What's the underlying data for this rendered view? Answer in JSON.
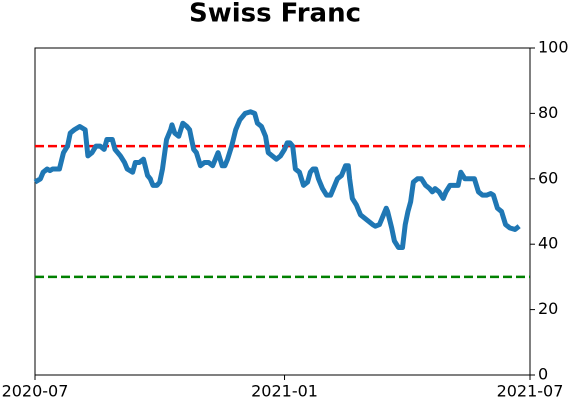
{
  "chart_data": {
    "type": "line",
    "title": "Swiss Franc",
    "x": [
      0,
      4,
      6,
      9,
      11,
      13,
      16,
      18,
      21,
      24,
      26,
      29,
      33,
      37,
      39,
      42,
      45,
      48,
      51,
      53,
      57,
      59,
      63,
      66,
      68,
      72,
      74,
      77,
      80,
      83,
      85,
      87,
      90,
      92,
      94,
      97,
      100,
      101,
      103,
      106,
      109,
      112,
      114,
      117,
      119,
      122,
      125,
      128,
      131,
      133,
      135,
      138,
      140,
      142,
      145,
      148,
      151,
      155,
      159,
      162,
      164,
      167,
      170,
      172,
      175,
      178,
      181,
      184,
      186,
      188,
      190,
      192,
      195,
      198,
      201,
      203,
      205,
      207,
      209,
      212,
      215,
      218,
      220,
      223,
      226,
      229,
      231,
      232,
      234,
      237,
      240,
      243,
      246,
      249,
      251,
      254,
      257,
      259,
      260,
      263,
      265,
      268,
      271,
      273,
      275,
      277,
      279,
      282,
      285,
      288,
      291,
      293,
      295,
      298,
      301,
      303,
      306,
      309,
      312,
      314,
      317,
      321,
      324,
      327,
      330,
      333,
      336,
      338,
      341,
      344,
      347,
      350,
      354,
      357
    ],
    "series": [
      {
        "name": "Swiss Franc",
        "color": "#1f77b4",
        "values": [
          59,
          60,
          62,
          63,
          62.5,
          63,
          63,
          63,
          68,
          70,
          74,
          75,
          76,
          75,
          67,
          68,
          70,
          70,
          69,
          72,
          72,
          69,
          67,
          65,
          63,
          62,
          65,
          65,
          66,
          61,
          60,
          58,
          58,
          59,
          63,
          72,
          75,
          76.5,
          74,
          73,
          77,
          76,
          75,
          69,
          68,
          64,
          65,
          65,
          64,
          66,
          68,
          64,
          64,
          66,
          70,
          75,
          78,
          80,
          80.5,
          80,
          77,
          76,
          73,
          68,
          67,
          66,
          67,
          69,
          71,
          71,
          70,
          63,
          62,
          58,
          59,
          62,
          63,
          63,
          60,
          57,
          55,
          55,
          57,
          60,
          61,
          64,
          64,
          60,
          54,
          52,
          49,
          48,
          47,
          46,
          45.5,
          46,
          49,
          51,
          50,
          45,
          41,
          39,
          39,
          46,
          50,
          53,
          59,
          60,
          60,
          58,
          57,
          56,
          57,
          56,
          54,
          56,
          58,
          58,
          58,
          62,
          60,
          60,
          60,
          56,
          55,
          55,
          55.5,
          55,
          51,
          50,
          46,
          45,
          44.5,
          45.5
        ]
      }
    ],
    "xlim": [
      0,
      365
    ],
    "xticks": [
      {
        "value": 0,
        "label": "2020-07"
      },
      {
        "value": 184,
        "label": "2021-01"
      },
      {
        "value": 365,
        "label": "2021-07"
      }
    ],
    "ylim": [
      0,
      100
    ],
    "yticks": [
      0,
      20,
      40,
      60,
      80,
      100
    ],
    "y_axis_side": "right",
    "hlines": [
      {
        "value": 70,
        "color": "red"
      },
      {
        "value": 30,
        "color": "green"
      }
    ]
  }
}
